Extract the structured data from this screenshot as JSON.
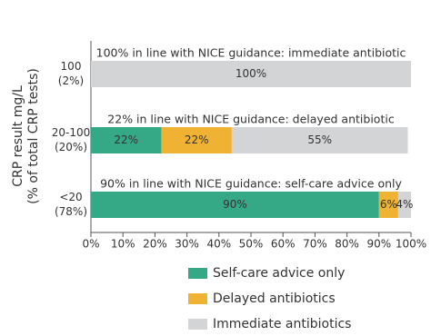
{
  "chart_data": {
    "type": "stacked-bar-horizontal",
    "ylabel": [
      "CRP result mg/L",
      "(% of total CRP tests)"
    ],
    "categories": [
      [
        "100",
        "(2%)"
      ],
      [
        "20-100",
        "(20%)"
      ],
      [
        "<20",
        "(78%)"
      ]
    ],
    "annotations": [
      "100% in line with NICE guidance: immediate antibiotic",
      "22% in line with NICE guidance: delayed antibiotic",
      "90% in line with NICE guidance: self-care advice only"
    ],
    "series": [
      {
        "name": "Self-care advice only",
        "color": "#35a886",
        "values": [
          0,
          22,
          90
        ],
        "value_labels": [
          null,
          "22%",
          "90%"
        ]
      },
      {
        "name": "Delayed antibiotics",
        "color": "#f0b232",
        "values": [
          0,
          22,
          6
        ],
        "value_labels": [
          null,
          "22%",
          "6%"
        ]
      },
      {
        "name": "Immediate antibiotics",
        "color": "#d2d4d5",
        "values": [
          100,
          55,
          4
        ],
        "value_labels": [
          "100%",
          "55%",
          "4%"
        ]
      }
    ],
    "xlim": [
      0,
      100
    ],
    "xticks": [
      {
        "value": 0,
        "label": "0%"
      },
      {
        "value": 10,
        "label": "10%"
      },
      {
        "value": 20,
        "label": "20%"
      },
      {
        "value": 30,
        "label": "30%"
      },
      {
        "value": 40,
        "label": "40%"
      },
      {
        "value": 50,
        "label": "50%"
      },
      {
        "value": 60,
        "label": "60%"
      },
      {
        "value": 70,
        "label": "70%"
      },
      {
        "value": 80,
        "label": "80%"
      },
      {
        "value": 90,
        "label": "90%"
      },
      {
        "value": 100,
        "label": "100%"
      }
    ]
  }
}
